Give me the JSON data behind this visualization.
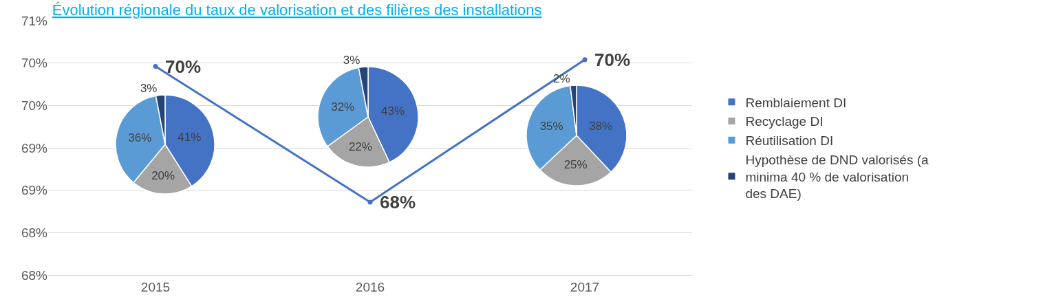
{
  "chart_data": [
    {
      "type": "line",
      "title": "Évolution régionale du taux de valorisation et des filières des installations",
      "categories": [
        "2015",
        "2016",
        "2017"
      ],
      "series": [
        {
          "color": "#4472c4",
          "values": [
            69.96,
            68.36,
            70.04
          ],
          "value_labels": [
            "70%",
            "68%",
            "70%"
          ]
        }
      ],
      "ylim": [
        67.5,
        70.5
      ],
      "yticks": [
        {
          "value": 67.5,
          "label": "68%"
        },
        {
          "value": 68.0,
          "label": "68%"
        },
        {
          "value": 68.5,
          "label": "69%"
        },
        {
          "value": 69.0,
          "label": "69%"
        },
        {
          "value": 69.5,
          "label": "70%"
        },
        {
          "value": 70.0,
          "label": "70%"
        },
        {
          "value": 70.5,
          "label": "71%"
        }
      ],
      "grid": "y",
      "marker": "circle",
      "line_style": "solid"
    },
    {
      "type": "pie",
      "categories": [
        "Remblaiement DI",
        "Recyclage DI",
        "Réutilisation DI",
        "Hypothèse de DND valorisés (a minima 40 % de valorisation des DAE)"
      ],
      "values": [
        41,
        20,
        36,
        3
      ],
      "value_labels": [
        "41%",
        "20%",
        "36%",
        "3%"
      ],
      "colors": [
        "#4472c4",
        "#a5a5a5",
        "#5b9bd5",
        "#264478"
      ],
      "legend": "right"
    },
    {
      "type": "pie",
      "values": [
        43,
        22,
        32,
        3
      ],
      "value_labels": [
        "43%",
        "22%",
        "32%",
        "3%"
      ],
      "colors": [
        "#4472c4",
        "#a5a5a5",
        "#5b9bd5",
        "#264478"
      ]
    },
    {
      "type": "pie",
      "values": [
        38,
        25,
        35,
        2
      ],
      "value_labels": [
        "38%",
        "25%",
        "35%",
        "2%"
      ],
      "colors": [
        "#4472c4",
        "#a5a5a5",
        "#5b9bd5",
        "#264478"
      ]
    }
  ]
}
